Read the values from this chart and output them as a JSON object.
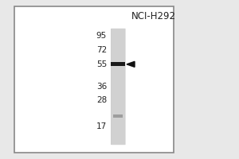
{
  "title": "NCI-H292",
  "outer_bg": "#e8e8e8",
  "panel_bg": "#ffffff",
  "border_color": "#888888",
  "lane_bg_color": "#cccccc",
  "mw_markers": [
    95,
    72,
    55,
    36,
    28,
    17
  ],
  "mw_labels": [
    "95",
    "72",
    "55",
    "36",
    "28",
    "17"
  ],
  "band_main_mw": 55,
  "band_faint_mw": 20.5,
  "arrow_color": "#111111",
  "text_color": "#222222",
  "label_fontsize": 7.5,
  "title_fontsize": 8.5,
  "ymin": 12,
  "ymax": 108
}
